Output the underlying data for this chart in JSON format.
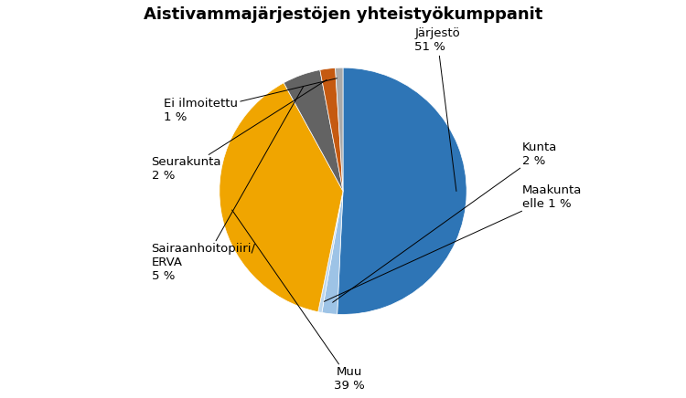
{
  "title": "Aistivammajärjestöjen yhteistyökumppanit",
  "slices": [
    {
      "label": "Järjestö\n51 %",
      "value": 51,
      "color": "#2E75B6"
    },
    {
      "label": "Kunta\n2 %",
      "value": 2,
      "color": "#9DC3E6"
    },
    {
      "label": "Maakunta\nelle 1 %",
      "value": 0.5,
      "color": "#BDD7EE"
    },
    {
      "label": "Muu\n39 %",
      "value": 39,
      "color": "#F0A500"
    },
    {
      "label": "Sairaanhoitopiiri/\nERVA\n5 %",
      "value": 5,
      "color": "#636363"
    },
    {
      "label": "Seurakunta\n2 %",
      "value": 2,
      "color": "#C55A11"
    },
    {
      "label": "Ei ilmoitettu\n1 %",
      "value": 1,
      "color": "#A9A9A9"
    }
  ],
  "title_fontsize": 13,
  "label_fontsize": 9.5,
  "bg_color": "#FFFFFF",
  "start_angle": 90
}
